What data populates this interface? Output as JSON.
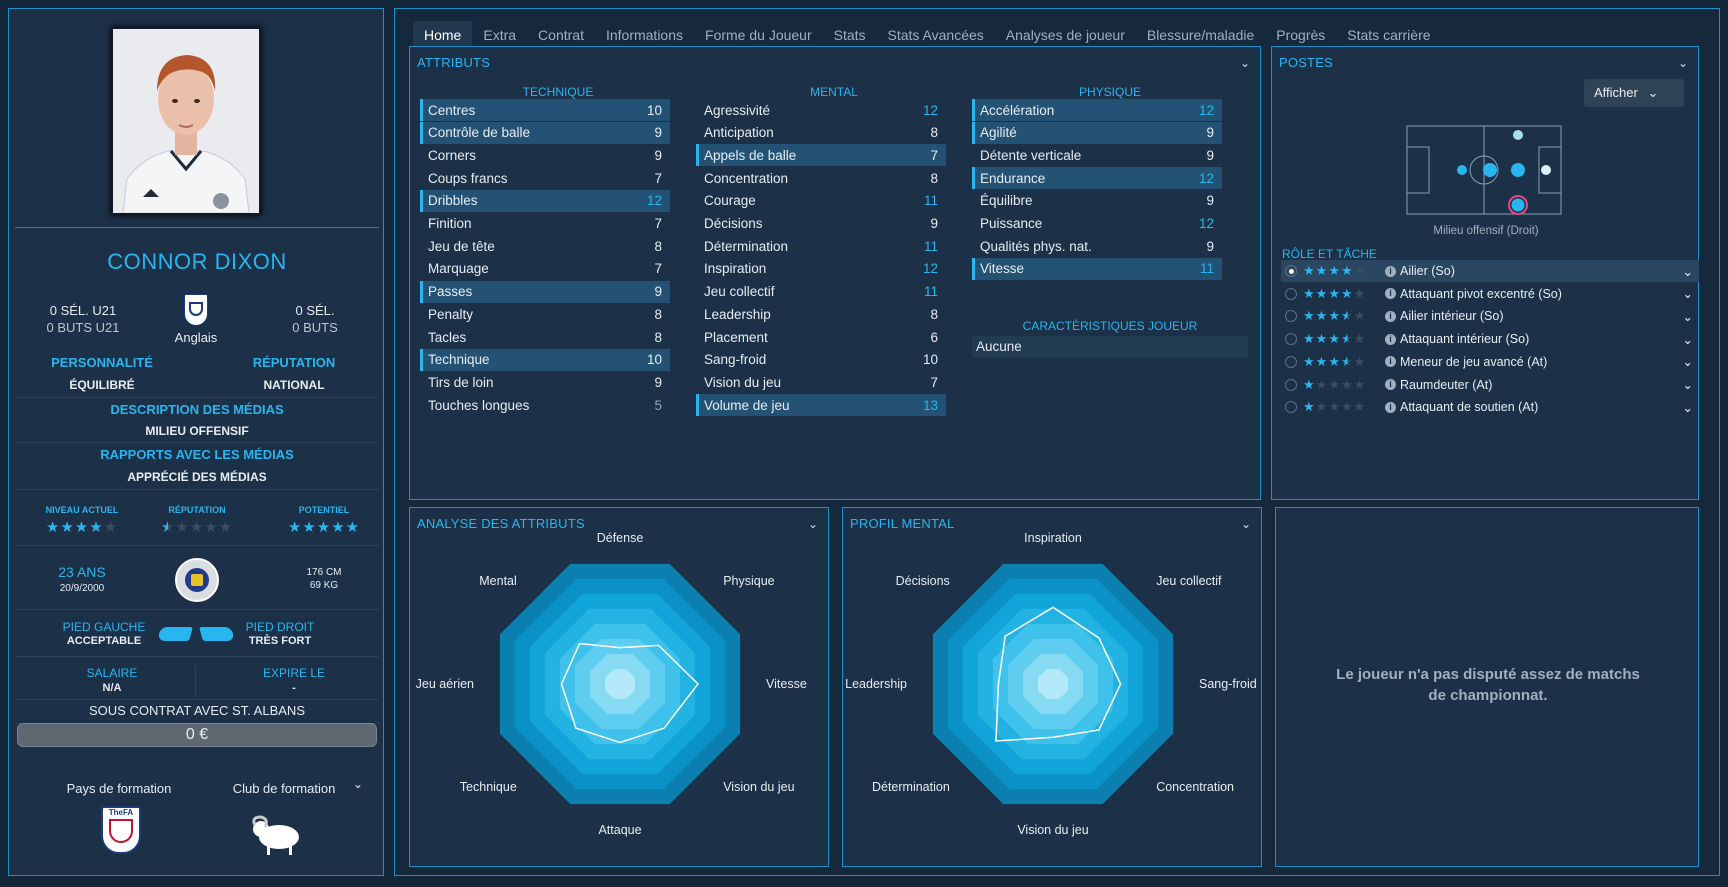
{
  "player": {
    "name": "CONNOR DIXON",
    "caps_u21": "0 SÉL. U21",
    "goals_u21": "0 BUTS U21",
    "nationality": "Anglais",
    "caps": "0 SÉL.",
    "goals": "0 BUTS",
    "personality_label": "PERSONNALITÉ",
    "personality": "ÉQUILIBRÉ",
    "reputation_label": "RÉPUTATION",
    "reputation": "NATIONAL",
    "media_desc_label": "DESCRIPTION DES MÉDIAS",
    "media_desc": "MILIEU OFFENSIF",
    "media_rel_label": "RAPPORTS AVEC LES MÉDIAS",
    "media_rel": "APPRÉCIÉ DES MÉDIAS",
    "current_level_label": "NIVEAU ACTUEL",
    "current_level_stars": 4,
    "rep_label": "RÉPUTATION",
    "rep_stars": 0.5,
    "potential_label": "POTENTIEL",
    "potential_stars": 5,
    "age": "23 ANS",
    "dob": "20/9/2000",
    "height": "176 CM",
    "weight": "69 KG",
    "left_foot_label": "PIED GAUCHE",
    "left_foot": "ACCEPTABLE",
    "right_foot_label": "PIED DROIT",
    "right_foot": "TRÈS FORT",
    "salary_label": "SALAIRE",
    "salary": "N/A",
    "expires_label": "EXPIRE LE",
    "expires": "-",
    "contract": "SOUS CONTRAT AVEC ST. ALBANS",
    "value": "0 €",
    "training_country_label": "Pays de formation",
    "training_club_label": "Club de formation",
    "fa_text": "TheFA"
  },
  "tabs": [
    "Home",
    "Extra",
    "Contrat",
    "Informations",
    "Forme du Joueur",
    "Stats",
    "Stats Avancées",
    "Analyses de joueur",
    "Blessure/maladie",
    "Progrès",
    "Stats carrière"
  ],
  "attributes": {
    "title": "ATTRIBUTS",
    "technique_header": "TECHNIQUE",
    "mental_header": "MENTAL",
    "physique_header": "PHYSIQUE",
    "technique": [
      {
        "name": "Centres",
        "value": "10",
        "hl": true
      },
      {
        "name": "Contrôle de balle",
        "value": "9",
        "hl": true
      },
      {
        "name": "Corners",
        "value": "9",
        "hl": false
      },
      {
        "name": "Coups francs",
        "value": "7",
        "hl": false
      },
      {
        "name": "Dribbles",
        "value": "12",
        "hl": true
      },
      {
        "name": "Finition",
        "value": "7",
        "hl": false
      },
      {
        "name": "Jeu de tête",
        "value": "8",
        "hl": false
      },
      {
        "name": "Marquage",
        "value": "7",
        "hl": false
      },
      {
        "name": "Passes",
        "value": "9",
        "hl": true
      },
      {
        "name": "Penalty",
        "value": "8",
        "hl": false
      },
      {
        "name": "Tacles",
        "value": "8",
        "hl": false
      },
      {
        "name": "Technique",
        "value": "10",
        "hl": true
      },
      {
        "name": "Tirs de loin",
        "value": "9",
        "hl": false
      },
      {
        "name": "Touches longues",
        "value": "5",
        "hl": false
      }
    ],
    "mental": [
      {
        "name": "Agressivité",
        "value": "12",
        "hl": false
      },
      {
        "name": "Anticipation",
        "value": "8",
        "hl": false
      },
      {
        "name": "Appels de balle",
        "value": "7",
        "hl": true
      },
      {
        "name": "Concentration",
        "value": "8",
        "hl": false
      },
      {
        "name": "Courage",
        "value": "11",
        "hl": false
      },
      {
        "name": "Décisions",
        "value": "9",
        "hl": false
      },
      {
        "name": "Détermination",
        "value": "11",
        "hl": false
      },
      {
        "name": "Inspiration",
        "value": "12",
        "hl": false
      },
      {
        "name": "Jeu collectif",
        "value": "11",
        "hl": false
      },
      {
        "name": "Leadership",
        "value": "8",
        "hl": false
      },
      {
        "name": "Placement",
        "value": "6",
        "hl": false
      },
      {
        "name": "Sang-froid",
        "value": "10",
        "hl": false
      },
      {
        "name": "Vision du jeu",
        "value": "7",
        "hl": false
      },
      {
        "name": "Volume de jeu",
        "value": "13",
        "hl": true
      }
    ],
    "physique": [
      {
        "name": "Accélération",
        "value": "12",
        "hl": true
      },
      {
        "name": "Agilité",
        "value": "9",
        "hl": true
      },
      {
        "name": "Détente verticale",
        "value": "9",
        "hl": false
      },
      {
        "name": "Endurance",
        "value": "12",
        "hl": true
      },
      {
        "name": "Équilibre",
        "value": "9",
        "hl": false
      },
      {
        "name": "Puissance",
        "value": "12",
        "hl": false
      },
      {
        "name": "Qualités phys. nat.",
        "value": "9",
        "hl": false
      },
      {
        "name": "Vitesse",
        "value": "11",
        "hl": true
      }
    ],
    "traits_header": "CARACTÉRISTIQUES JOUEUR",
    "traits_value": "Aucune"
  },
  "positions": {
    "title": "POSTES",
    "afficher": "Afficher",
    "position_caption": "Milieu offensif (Droit)",
    "role_header": "RÔLE ET TÂCHE",
    "roles": [
      {
        "name": "Ailier (So)",
        "stars": 4,
        "selected": true
      },
      {
        "name": "Attaquant pivot excentré (So)",
        "stars": 4,
        "selected": false
      },
      {
        "name": "Ailier intérieur (So)",
        "stars": 3.5,
        "selected": false
      },
      {
        "name": "Attaquant intérieur (So)",
        "stars": 3.5,
        "selected": false
      },
      {
        "name": "Meneur de jeu avancé (At)",
        "stars": 3.5,
        "selected": false
      },
      {
        "name": "Raumdeuter (At)",
        "stars": 1,
        "selected": false
      },
      {
        "name": "Attaquant de soutien (At)",
        "stars": 1,
        "selected": false
      }
    ]
  },
  "analysis": {
    "title": "ANALYSE DES ATTRIBUTS",
    "labels": [
      "Défense",
      "Physique",
      "Vitesse",
      "Vision du jeu",
      "Attaque",
      "Technique",
      "Jeu aérien",
      "Mental"
    ],
    "values": [
      0.28,
      0.42,
      0.6,
      0.48,
      0.45,
      0.48,
      0.45,
      0.44
    ]
  },
  "mental_profile": {
    "title": "PROFIL MENTAL",
    "labels": [
      "Inspiration",
      "Jeu collectif",
      "Sang-froid",
      "Concentration",
      "Vision du jeu",
      "Détermination",
      "Leadership",
      "Décisions"
    ],
    "values": [
      0.59,
      0.5,
      0.52,
      0.5,
      0.41,
      0.62,
      0.42,
      0.52
    ]
  },
  "no_matches_text": "Le joueur n'a pas disputé assez de matchs de championnat.",
  "colors": {
    "accent": "#27b6ef",
    "highlight": "#245274",
    "panel": "#1c3047"
  }
}
